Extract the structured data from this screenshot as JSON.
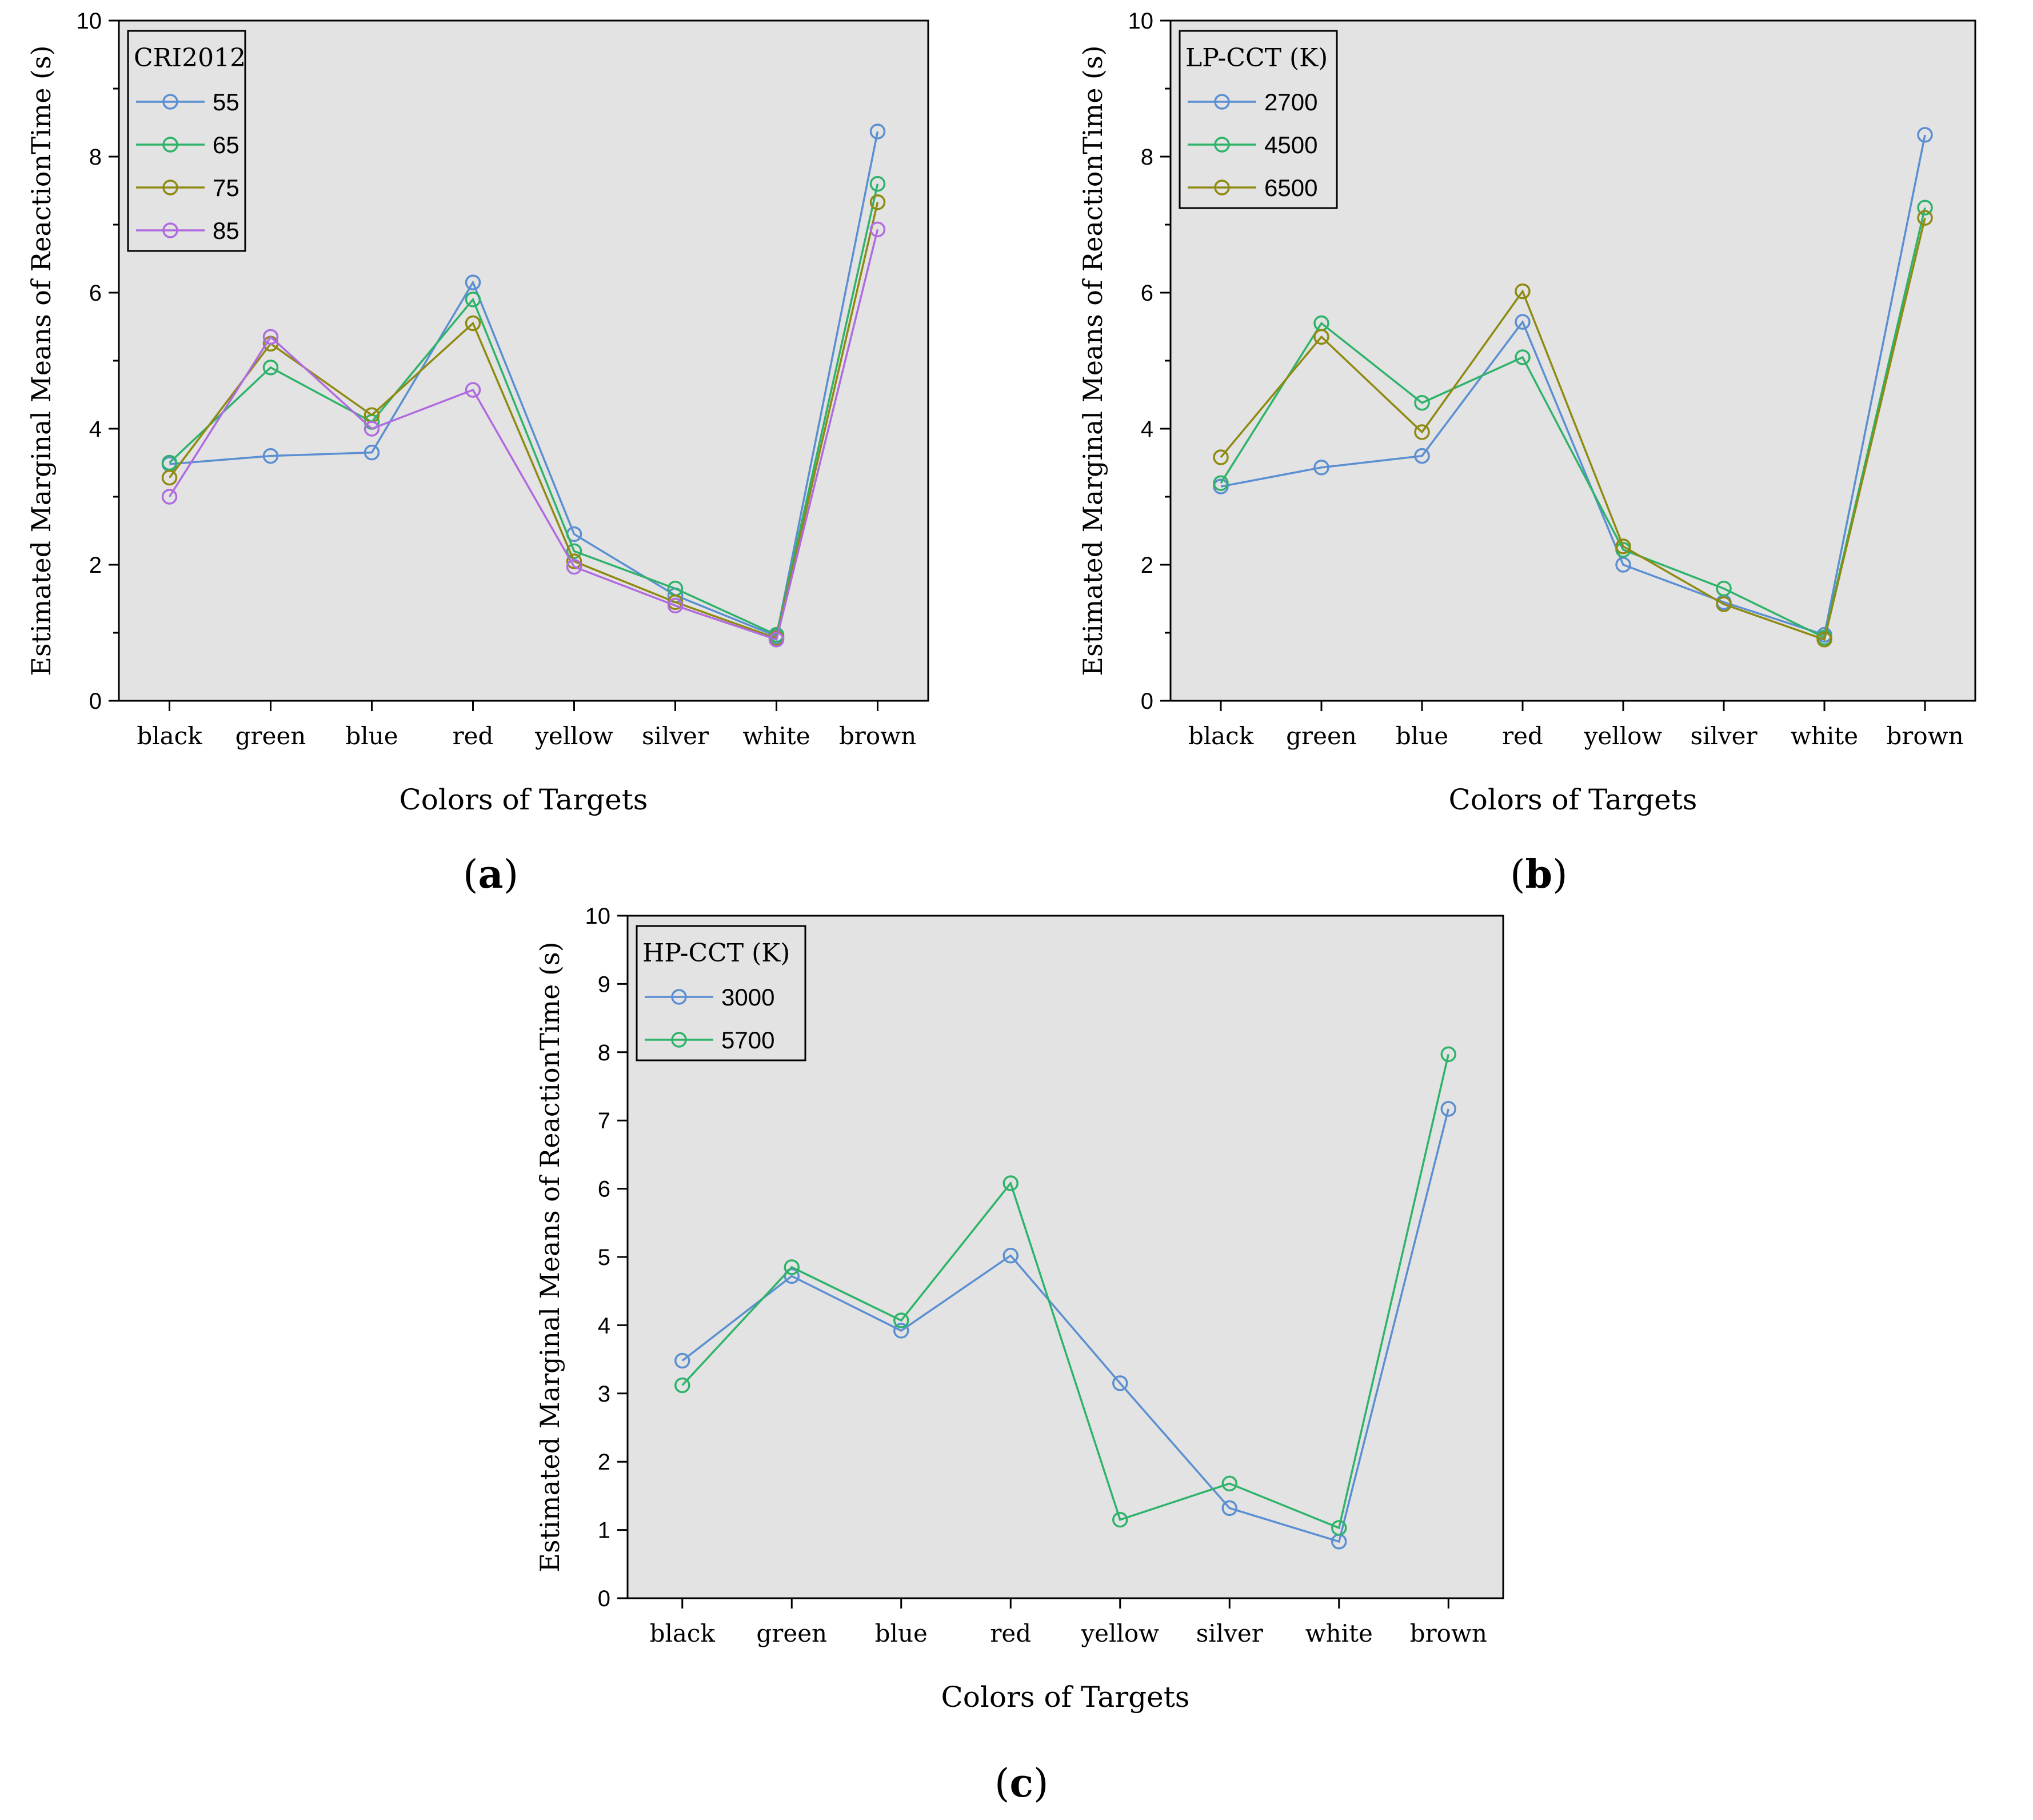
{
  "colors": {
    "s55": "#5b8fd1",
    "s65": "#2fb36a",
    "s75": "#8f8a12",
    "s85": "#b06be0",
    "plot_bg": "#e3e3e3",
    "axis": "#000000"
  },
  "panels": [
    {
      "label_open": "(",
      "label_letter": "a",
      "label_close": ")"
    },
    {
      "label_open": "(",
      "label_letter": "b",
      "label_close": ")"
    },
    {
      "label_open": "(",
      "label_letter": "c",
      "label_close": ")"
    }
  ],
  "chart_data": [
    {
      "type": "line",
      "title": "",
      "xlabel": "Colors of Targets",
      "ylabel": "Estimated Marginal Means of ReactionTime (s)",
      "categories": [
        "black",
        "green",
        "blue",
        "red",
        "yellow",
        "silver",
        "white",
        "brown"
      ],
      "ylim": [
        0,
        10
      ],
      "yticks": [
        0,
        2,
        4,
        6,
        8,
        10
      ],
      "yticks_minor": [
        1,
        3,
        5,
        7,
        9
      ],
      "legend_title": "CRI2012",
      "legend_position": "top-left",
      "series": [
        {
          "name": "55",
          "color": "#5b8fd1",
          "values": [
            3.48,
            3.6,
            3.65,
            6.15,
            2.45,
            1.55,
            0.95,
            8.37
          ]
        },
        {
          "name": "65",
          "color": "#2fb36a",
          "values": [
            3.5,
            4.9,
            4.1,
            5.9,
            2.2,
            1.65,
            0.97,
            7.6
          ]
        },
        {
          "name": "75",
          "color": "#8f8a12",
          "values": [
            3.28,
            5.25,
            4.2,
            5.55,
            2.05,
            1.45,
            0.92,
            7.33
          ]
        },
        {
          "name": "85",
          "color": "#b06be0",
          "values": [
            3.0,
            5.35,
            4.0,
            4.57,
            1.97,
            1.4,
            0.9,
            6.93
          ]
        }
      ]
    },
    {
      "type": "line",
      "title": "",
      "xlabel": "Colors of Targets",
      "ylabel": "Estimated Marginal Means of ReactionTime (s)",
      "categories": [
        "black",
        "green",
        "blue",
        "red",
        "yellow",
        "silver",
        "white",
        "brown"
      ],
      "ylim": [
        0,
        10
      ],
      "yticks": [
        0,
        2,
        4,
        6,
        8,
        10
      ],
      "yticks_minor": [
        1,
        3,
        5,
        7,
        9
      ],
      "legend_title": "LP-CCT (K)",
      "legend_position": "top-left",
      "series": [
        {
          "name": "2700",
          "color": "#5b8fd1",
          "values": [
            3.15,
            3.43,
            3.6,
            5.57,
            2.0,
            1.45,
            0.97,
            8.32
          ]
        },
        {
          "name": "4500",
          "color": "#2fb36a",
          "values": [
            3.2,
            5.55,
            4.38,
            5.05,
            2.22,
            1.65,
            0.93,
            7.25
          ]
        },
        {
          "name": "6500",
          "color": "#8f8a12",
          "values": [
            3.58,
            5.35,
            3.95,
            6.02,
            2.27,
            1.42,
            0.9,
            7.1
          ]
        }
      ]
    },
    {
      "type": "line",
      "title": "",
      "xlabel": "Colors of Targets",
      "ylabel": "Estimated Marginal Means of ReactionTime (s)",
      "categories": [
        "black",
        "green",
        "blue",
        "red",
        "yellow",
        "silver",
        "white",
        "brown"
      ],
      "ylim": [
        0,
        10
      ],
      "yticks": [
        0,
        1,
        2,
        3,
        4,
        5,
        6,
        7,
        8,
        9,
        10
      ],
      "yticks_minor": [],
      "legend_title": "HP-CCT (K)",
      "legend_position": "top-left",
      "series": [
        {
          "name": "3000",
          "color": "#5b8fd1",
          "values": [
            3.48,
            4.72,
            3.92,
            5.02,
            3.15,
            1.32,
            0.83,
            7.17
          ]
        },
        {
          "name": "5700",
          "color": "#2fb36a",
          "values": [
            3.12,
            4.85,
            4.07,
            6.08,
            1.15,
            1.68,
            1.03,
            7.97
          ]
        }
      ]
    }
  ]
}
